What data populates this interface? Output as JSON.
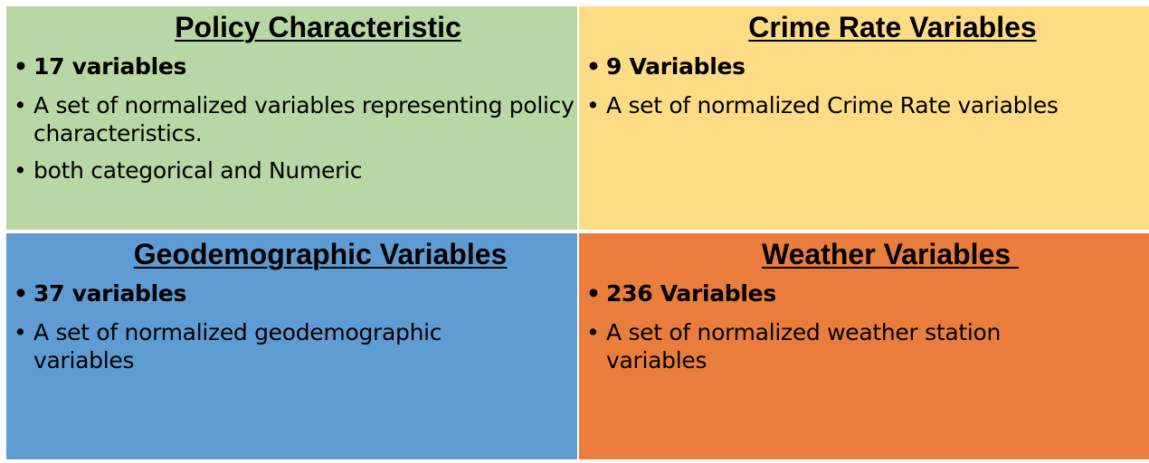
{
  "panels": [
    {
      "title": "Policy Characteristic",
      "color": "#B9D6A5",
      "bullets": [
        "17 variables",
        "A set of normalized variables representing policy characteristics.",
        "both categorical and Numeric"
      ]
    },
    {
      "title": "Crime Rate Variables",
      "color": "#FEDC86",
      "bullets": [
        "9 Variables",
        "A set of normalized Crime Rate variables"
      ]
    },
    {
      "title": "Geodemographic Variables",
      "color": "#5F9CD3",
      "bullets": [
        "37 variables",
        "A set of normalized geodemographic variables"
      ]
    },
    {
      "title": "Weather Variables ",
      "color": "#EB7D3C",
      "bullets": [
        "236 Variables",
        "A set of normalized weather station variables"
      ]
    }
  ]
}
